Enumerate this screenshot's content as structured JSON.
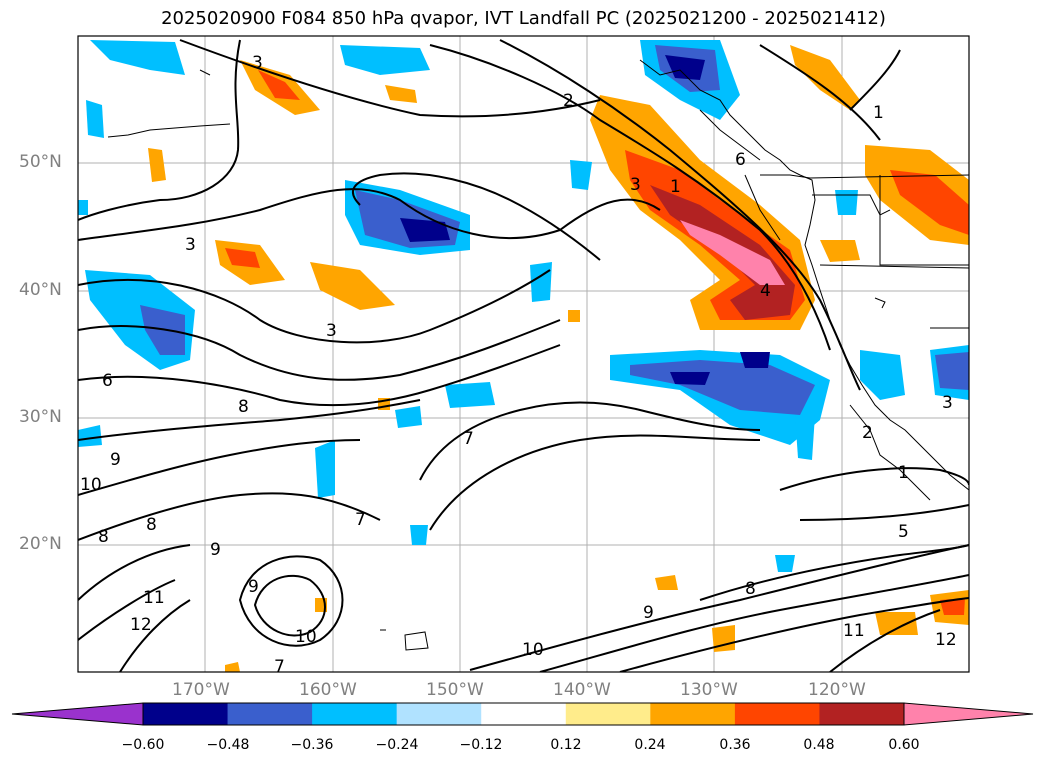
{
  "title": "2025020900 F084 850 hPa qvapor, IVT Landfall PC (2025021200 - 2025021412)",
  "map": {
    "lat_labels": [
      "50°N",
      "40°N",
      "30°N",
      "20°N"
    ],
    "lon_labels": [
      "170°W",
      "160°W",
      "150°W",
      "140°W",
      "130°W",
      "120°W"
    ],
    "contour_labels": [
      "3",
      "2",
      "1",
      "6",
      "3",
      "1",
      "4",
      "3",
      "6",
      "7",
      "8",
      "9",
      "10",
      "8",
      "8",
      "9",
      "9",
      "11",
      "12",
      "10",
      "7",
      "7",
      "10",
      "9",
      "8",
      "11",
      "12",
      "2",
      "1",
      "5",
      "3",
      "3"
    ],
    "colors": {
      "land_outline": "#000000",
      "contour": "#000000",
      "grid": "#b0b0b0"
    }
  },
  "colorbar": {
    "ticks": [
      "−0.60",
      "−0.48",
      "−0.36",
      "−0.24",
      "−0.12",
      "0.12",
      "0.24",
      "0.36",
      "0.48",
      "0.60"
    ],
    "colors": [
      "#9a32cd",
      "#00008b",
      "#3a5fcd",
      "#00bfff",
      "#b0e2ff",
      "#ffffff",
      "#ffec8b",
      "#ffa500",
      "#ff4500",
      "#b22222",
      "#ff82ab"
    ]
  }
}
